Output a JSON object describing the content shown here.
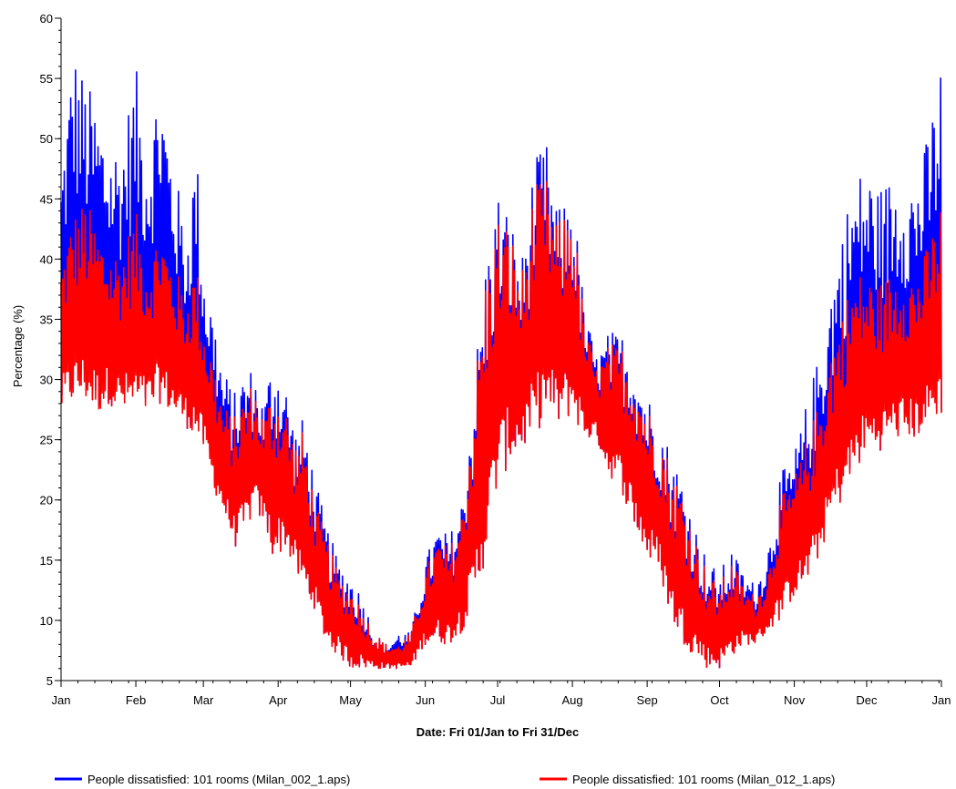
{
  "chart_data": {
    "type": "line",
    "xlabel": "Date: Fri 01/Jan to Fri 31/Dec",
    "ylabel": "Percentage (%)",
    "ylim": [
      5,
      60
    ],
    "yticks": [
      5,
      10,
      15,
      20,
      25,
      30,
      35,
      40,
      45,
      50,
      55,
      60
    ],
    "x_tick_labels": [
      "Jan",
      "Feb",
      "Mar",
      "Apr",
      "May",
      "Jun",
      "Jul",
      "Aug",
      "Sep",
      "Oct",
      "Nov",
      "Dec",
      "Jan"
    ],
    "x_tick_days": [
      0,
      31,
      59,
      90,
      120,
      151,
      181,
      212,
      243,
      273,
      304,
      334,
      365
    ],
    "grid": false,
    "legend_position": "bottom",
    "series": [
      {
        "name": "People dissatisfied: 101 rooms (Milan_002_1.aps)",
        "color": "#0000ff",
        "envelope": {
          "day": [
            0,
            5,
            10,
            15,
            20,
            25,
            31,
            36,
            41,
            46,
            52,
            56,
            59,
            63,
            67,
            72,
            76,
            80,
            84,
            88,
            93,
            97,
            101,
            105,
            110,
            115,
            120,
            125,
            130,
            135,
            140,
            145,
            151,
            156,
            161,
            166,
            171,
            176,
            181,
            186,
            191,
            196,
            201,
            206,
            212,
            217,
            222,
            227,
            232,
            237,
            243,
            248,
            253,
            258,
            263,
            268,
            273,
            278,
            283,
            288,
            293,
            298,
            304,
            309,
            314,
            319,
            324,
            329,
            334,
            339,
            344,
            349,
            354,
            359,
            365
          ],
          "low": [
            27,
            28,
            28,
            27,
            28,
            27,
            27,
            27,
            28,
            27,
            26,
            25,
            24,
            21,
            19,
            16,
            17,
            19,
            18,
            15,
            16,
            14,
            12,
            11,
            8,
            7,
            6,
            6,
            6,
            6,
            6,
            6,
            8,
            8,
            8,
            9,
            11,
            15,
            21,
            23,
            24,
            25,
            27,
            26,
            27,
            25,
            25,
            22,
            21,
            18,
            15,
            14,
            10,
            8,
            7,
            6,
            6,
            7,
            8,
            8,
            9,
            10,
            12,
            13,
            15,
            18,
            20,
            22,
            24,
            24,
            25,
            25,
            25,
            26,
            27
          ],
          "high": [
            48,
            58,
            55,
            53,
            50,
            50,
            56,
            50,
            56,
            49,
            42,
            50,
            40,
            36,
            31,
            29,
            31,
            31,
            28,
            33,
            30,
            26,
            27,
            22,
            18,
            15,
            14,
            12,
            9,
            8,
            9,
            9,
            15,
            18,
            17,
            20,
            30,
            40,
            46,
            44,
            40,
            48,
            50,
            44,
            46,
            36,
            32,
            34,
            34,
            33,
            29,
            27,
            24,
            22,
            18,
            15,
            14,
            16,
            14,
            13,
            16,
            22,
            24,
            28,
            32,
            38,
            43,
            47,
            48,
            46,
            47,
            48,
            47,
            50,
            57
          ]
        }
      },
      {
        "name": "People dissatisfied: 101 rooms (Milan_012_1.aps)",
        "color": "#ff0000",
        "envelope": {
          "day": [
            0,
            5,
            10,
            15,
            20,
            25,
            31,
            36,
            41,
            46,
            52,
            56,
            59,
            63,
            67,
            72,
            76,
            80,
            84,
            88,
            93,
            97,
            101,
            105,
            110,
            115,
            120,
            125,
            130,
            135,
            140,
            145,
            151,
            156,
            161,
            166,
            171,
            176,
            181,
            186,
            191,
            196,
            201,
            206,
            212,
            217,
            222,
            227,
            232,
            237,
            243,
            248,
            253,
            258,
            263,
            268,
            273,
            278,
            283,
            288,
            293,
            298,
            304,
            309,
            314,
            319,
            324,
            329,
            334,
            339,
            344,
            349,
            354,
            359,
            365
          ],
          "low": [
            27,
            28,
            28,
            27,
            28,
            27,
            27,
            27,
            28,
            27,
            26,
            25,
            24,
            21,
            19,
            16,
            17,
            19,
            18,
            15,
            16,
            14,
            12,
            11,
            8,
            7,
            6,
            6,
            6,
            6,
            6,
            6,
            8,
            8,
            8,
            9,
            11,
            15,
            21,
            23,
            24,
            25,
            27,
            26,
            27,
            25,
            25,
            22,
            21,
            18,
            15,
            14,
            10,
            8,
            7,
            6,
            6,
            7,
            8,
            8,
            9,
            10,
            12,
            13,
            15,
            18,
            20,
            22,
            24,
            24,
            25,
            25,
            25,
            26,
            27
          ],
          "high": [
            40,
            44,
            45,
            43,
            41,
            41,
            44,
            40,
            43,
            40,
            37,
            40,
            35,
            32,
            28,
            27,
            29,
            30,
            27,
            30,
            28,
            25,
            26,
            20,
            17,
            14,
            13,
            11,
            9,
            8,
            8,
            9,
            14,
            17,
            16,
            19,
            29,
            39,
            44,
            43,
            39,
            46,
            47,
            43,
            45,
            35,
            31,
            33,
            33,
            32,
            28,
            26,
            23,
            21,
            17,
            14,
            13,
            15,
            13,
            12,
            14,
            20,
            22,
            25,
            28,
            33,
            36,
            39,
            39,
            38,
            39,
            40,
            39,
            41,
            45
          ]
        }
      }
    ]
  }
}
